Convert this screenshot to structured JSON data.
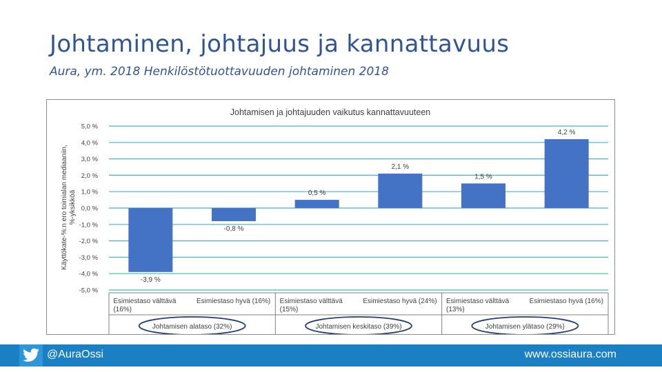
{
  "slide": {
    "title": "Johtaminen, johtajuus ja kannattavuus",
    "subtitle": "Aura, ym. 2018 Henkilöstötuottavuuden johtaminen 2018"
  },
  "footer": {
    "handle": "@AuraOssi",
    "website": "www.ossiaura.com",
    "icon": "twitter-bird-icon"
  },
  "colors": {
    "title": "#2f5597",
    "bar": "#4472c4",
    "gridline": "#44b3c7",
    "ellipse": "#1f3f7a",
    "footer": "#1b7fc3"
  },
  "chart_data": {
    "type": "bar",
    "title": "Johtamisen ja johtajuuden vaikutus kannattavuuteen",
    "ylabel": "Käyttökate-%:n ero toimialan mediaaniin, %-yksikköä",
    "ylim": [
      -5.0,
      5.0
    ],
    "yticks": [
      5.0,
      4.0,
      3.0,
      2.0,
      1.0,
      0.0,
      -1.0,
      -2.0,
      -3.0,
      -4.0,
      -5.0
    ],
    "ytick_labels": [
      "5,0 %",
      "4,0 %",
      "3,0 %",
      "2,0 %",
      "1,0 %",
      "0,0 %",
      "-1,0 %",
      "-2,0 %",
      "-3,0 %",
      "-4,0 %",
      "-5,0 %"
    ],
    "grid": true,
    "categories": [
      [
        "Esimiestaso välttävä",
        "(16%)"
      ],
      [
        "Esimiestaso hyvä (16%)"
      ],
      [
        "Esimiestaso välttävä",
        "(15%)"
      ],
      [
        "Esimiestaso hyvä (24%)"
      ],
      [
        "Esimiestaso välttävä",
        "(13%)"
      ],
      [
        "Esimiestaso hyvä (16%)"
      ]
    ],
    "values": [
      -3.9,
      -0.8,
      0.5,
      2.1,
      1.5,
      4.2
    ],
    "value_labels": [
      "-3,9 %",
      "-0,8 %",
      "0,5 %",
      "2,1 %",
      "1,5 %",
      "4,2 %"
    ],
    "groups": [
      "Johtamisen alataso (32%)",
      "Johtamisen keskitaso (39%)",
      "Johtamisen ylätaso (29%)"
    ]
  }
}
